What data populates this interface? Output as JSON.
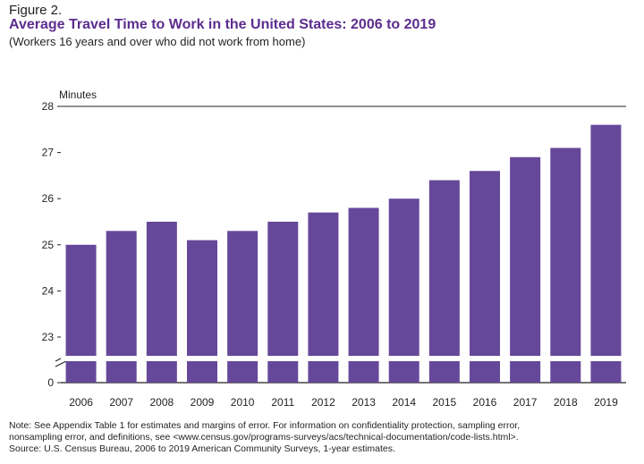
{
  "figure": {
    "label": "Figure 2.",
    "title": "Average Travel Time to Work in the United States: 2006 to 2019",
    "subtitle": "(Workers 16 years and over who did not work from home)"
  },
  "notes": {
    "line1": "Note: See Appendix Table 1 for estimates and margins of error. For information on confidentiality protection, sampling error,",
    "line2": "nonsampling error, and definitions, see <www.census.gov/programs-surveys/acs/technical-documentation/code-lists.html>.",
    "line3": "Source: U.S. Census Bureau, 2006 to 2019 American Community Surveys, 1-year estimates."
  },
  "colors": {
    "bar": "#66489a",
    "axis": "#231f20",
    "grid": "#231f20",
    "title": "#5b2d8e"
  },
  "chart_data": {
    "type": "bar",
    "ylabel": "Minutes",
    "categories": [
      "2006",
      "2007",
      "2008",
      "2009",
      "2010",
      "2011",
      "2012",
      "2013",
      "2014",
      "2015",
      "2016",
      "2017",
      "2018",
      "2019"
    ],
    "values": [
      25.0,
      25.3,
      25.5,
      25.1,
      25.3,
      25.5,
      25.7,
      25.8,
      26.0,
      26.4,
      26.6,
      26.9,
      27.1,
      27.6
    ],
    "yticks": [
      "0",
      "23",
      "24",
      "25",
      "26",
      "27",
      "28"
    ],
    "ylim": [
      22,
      28
    ],
    "axis_break": true,
    "grid": false
  }
}
